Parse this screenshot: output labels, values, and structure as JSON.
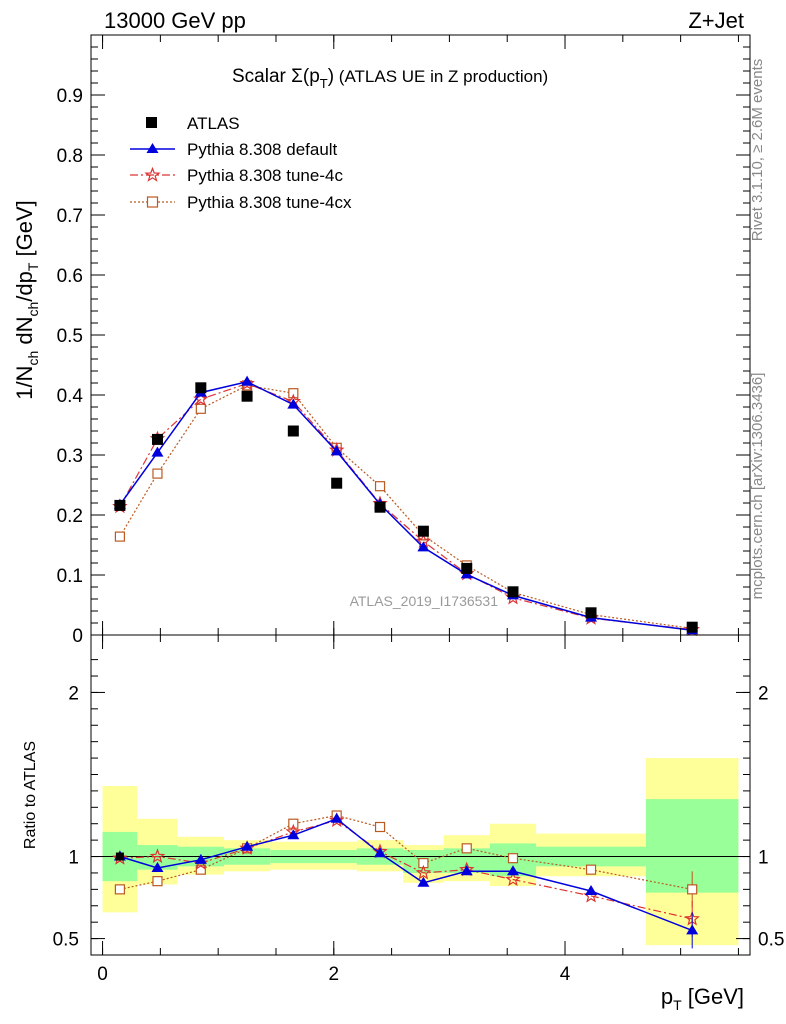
{
  "header": {
    "left": "13000 GeV pp",
    "right": "Z+Jet"
  },
  "plot_title": {
    "main": "Scalar Σ(p",
    "sub": "T",
    "close": ")",
    "rest": " (ATLAS UE in Z production)"
  },
  "side_labels": {
    "rivet": "Rivet 3.1.10, ≥ 2.6M events",
    "mcplots": "mcplots.cern.ch [arXiv:1306.3436]"
  },
  "watermark": "ATLAS_2019_I1736531",
  "axes": {
    "ylabel_main": "1/N",
    "ylabel_ch1": "ch",
    "ylabel_mid": " dN",
    "ylabel_ch2": "ch",
    "ylabel_dp": "/dp",
    "ylabel_T": "T",
    "ylabel_unit": " [GeV]",
    "ylabel_ratio": "Ratio to ATLAS",
    "xlabel_p": "p",
    "xlabel_T": "T",
    "xlabel_unit": " [GeV]"
  },
  "colors": {
    "data": "#000000",
    "default": "#0000dd",
    "tune4c": "#dd3333",
    "tune4cx": "#bb5a22",
    "band_inner": "#99ff99",
    "band_outer": "#ffff99"
  },
  "chart_data": {
    "type": "line",
    "x_edges": [
      0,
      0.3,
      0.65,
      1.05,
      1.45,
      1.85,
      2.2,
      2.6,
      2.95,
      3.35,
      3.75,
      4.7,
      5.5
    ],
    "x": [
      0.15,
      0.475,
      0.85,
      1.25,
      1.65,
      2.025,
      2.4,
      2.775,
      3.15,
      3.55,
      4.225,
      5.1
    ],
    "xlim": [
      -0.1,
      5.6
    ],
    "main_ylim": [
      0,
      1.0
    ],
    "ratio_ylim": [
      0.4,
      2.35
    ],
    "main_yticks": [
      {
        "v": 0,
        "label": "0"
      },
      {
        "v": 0.1,
        "label": "0.1"
      },
      {
        "v": 0.2,
        "label": "0.2"
      },
      {
        "v": 0.3,
        "label": "0.3"
      },
      {
        "v": 0.4,
        "label": "0.4"
      },
      {
        "v": 0.5,
        "label": "0.5"
      },
      {
        "v": 0.6,
        "label": "0.6"
      },
      {
        "v": 0.7,
        "label": "0.7"
      },
      {
        "v": 0.8,
        "label": "0.8"
      },
      {
        "v": 0.9,
        "label": "0.9"
      }
    ],
    "ratio_yticks": [
      {
        "v": 0.5,
        "label": "0.5"
      },
      {
        "v": 1,
        "label": "1"
      },
      {
        "v": 2,
        "label": "2"
      }
    ],
    "xticks": [
      {
        "v": 0,
        "label": "0"
      },
      {
        "v": 2,
        "label": "2"
      },
      {
        "v": 4,
        "label": "4"
      }
    ],
    "legend": [
      {
        "key": "data",
        "label": "ATLAS"
      },
      {
        "key": "default",
        "label": "Pythia 8.308 default"
      },
      {
        "key": "tune4c",
        "label": "Pythia 8.308 tune-4c"
      },
      {
        "key": "tune4cx",
        "label": "Pythia 8.308 tune-4cx"
      }
    ],
    "series": [
      {
        "key": "data",
        "name": "ATLAS",
        "values": [
          0.216,
          0.326,
          0.412,
          0.398,
          0.34,
          0.253,
          0.213,
          0.173,
          0.111,
          0.072,
          0.037,
          0.013
        ]
      },
      {
        "key": "default",
        "name": "Pythia 8.308 default",
        "values": [
          0.217,
          0.304,
          0.404,
          0.422,
          0.384,
          0.306,
          0.218,
          0.146,
          0.101,
          0.066,
          0.029,
          0.008
        ]
      },
      {
        "key": "tune4c",
        "name": "Pythia 8.308 tune-4c",
        "values": [
          0.214,
          0.327,
          0.393,
          0.419,
          0.389,
          0.308,
          0.219,
          0.156,
          0.102,
          0.062,
          0.028,
          0.009
        ]
      },
      {
        "key": "tune4cx",
        "name": "Pythia 8.308 tune-4cx",
        "values": [
          0.164,
          0.269,
          0.377,
          0.416,
          0.403,
          0.312,
          0.248,
          0.166,
          0.116,
          0.071,
          0.034,
          0.011
        ]
      }
    ],
    "ratios": [
      {
        "key": "default",
        "values": [
          1.0,
          0.93,
          0.98,
          1.06,
          1.13,
          1.23,
          1.02,
          0.84,
          0.91,
          0.91,
          0.79,
          0.55
        ]
      },
      {
        "key": "tune4c",
        "values": [
          0.99,
          1.0,
          0.96,
          1.05,
          1.15,
          1.22,
          1.03,
          0.9,
          0.92,
          0.86,
          0.76,
          0.62
        ]
      },
      {
        "key": "tune4cx",
        "values": [
          0.8,
          0.85,
          0.92,
          1.05,
          1.2,
          1.25,
          1.18,
          0.96,
          1.05,
          0.99,
          0.92,
          0.8
        ]
      }
    ],
    "band_inner": [
      [
        0.85,
        1.15
      ],
      [
        0.92,
        1.07
      ],
      [
        0.94,
        1.06
      ],
      [
        0.95,
        1.05
      ],
      [
        0.96,
        1.04
      ],
      [
        0.96,
        1.04
      ],
      [
        0.95,
        1.05
      ],
      [
        0.9,
        1.04
      ],
      [
        0.9,
        1.05
      ],
      [
        0.88,
        1.08
      ],
      [
        0.94,
        1.06
      ],
      [
        0.78,
        1.35
      ]
    ],
    "band_outer": [
      [
        0.66,
        1.43
      ],
      [
        0.83,
        1.23
      ],
      [
        0.89,
        1.12
      ],
      [
        0.91,
        1.1
      ],
      [
        0.92,
        1.09
      ],
      [
        0.92,
        1.09
      ],
      [
        0.91,
        1.1
      ],
      [
        0.84,
        1.07
      ],
      [
        0.85,
        1.13
      ],
      [
        0.82,
        1.2
      ],
      [
        0.88,
        1.14
      ],
      [
        0.46,
        1.6
      ]
    ]
  }
}
